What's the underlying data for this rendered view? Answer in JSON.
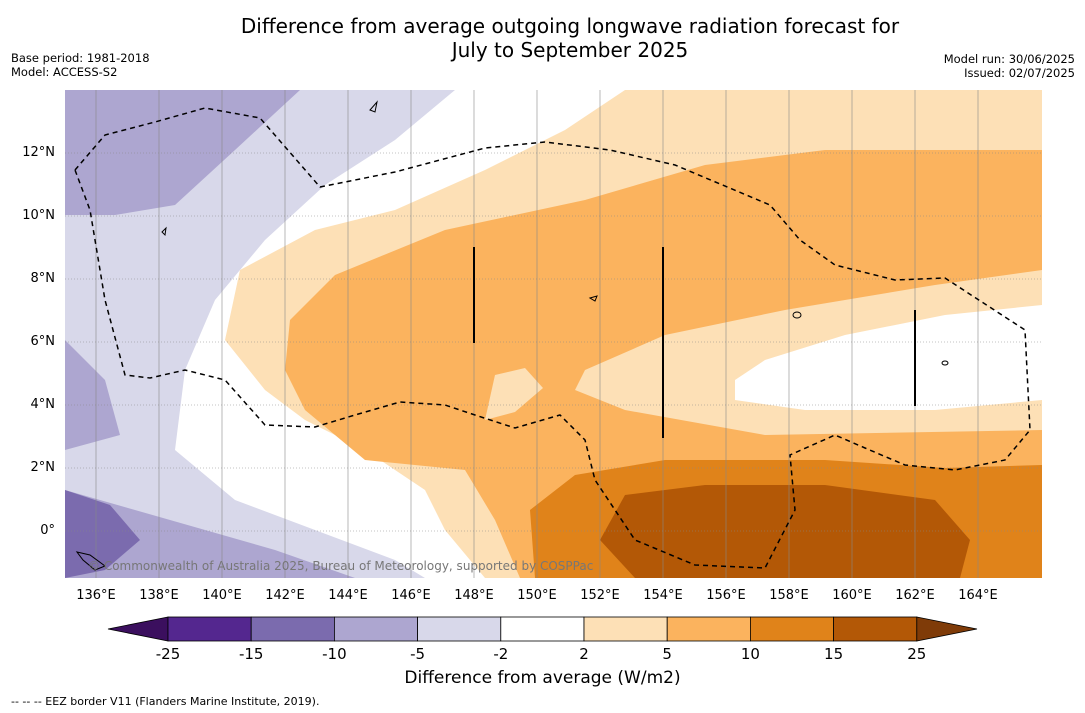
{
  "header": {
    "title_line1": "Difference from average outgoing longwave radiation forecast for",
    "title_line2": "July to September 2025",
    "base_period": "Base period: 1981-2018",
    "model": "Model: ACCESS-S2",
    "model_run": "Model run: 30/06/2025",
    "issued": "Issued: 02/07/2025"
  },
  "map": {
    "credit": "© Commonwealth of Australia 2025, Bureau of Meteorology, supported by COSPPac",
    "y_ticks": [
      "12°N",
      "10°N",
      "8°N",
      "6°N",
      "4°N",
      "2°N",
      "0°"
    ],
    "x_ticks": [
      "136°E",
      "138°E",
      "140°E",
      "142°E",
      "144°E",
      "146°E",
      "148°E",
      "150°E",
      "152°E",
      "154°E",
      "156°E",
      "158°E",
      "160°E",
      "162°E",
      "164°E"
    ],
    "extent": {
      "lon": [
        135,
        166
      ],
      "lat": [
        -1.5,
        14
      ]
    }
  },
  "legend": {
    "labels": [
      "-25",
      "-15",
      "-10",
      "-5",
      "-2",
      "2",
      "5",
      "10",
      "15",
      "25"
    ],
    "colors": [
      "#3b0f5e",
      "#54278f",
      "#7b6bae",
      "#ada6d0",
      "#d8d8ea",
      "#ffffff",
      "#fde0b6",
      "#fbb35e",
      "#e0831a",
      "#b35806",
      "#7f3b08"
    ],
    "title": "Difference from average (W/m2)"
  },
  "footer": {
    "text": "--  --  -- EEZ border V11 (Flanders Marine Institute, 2019)."
  }
}
